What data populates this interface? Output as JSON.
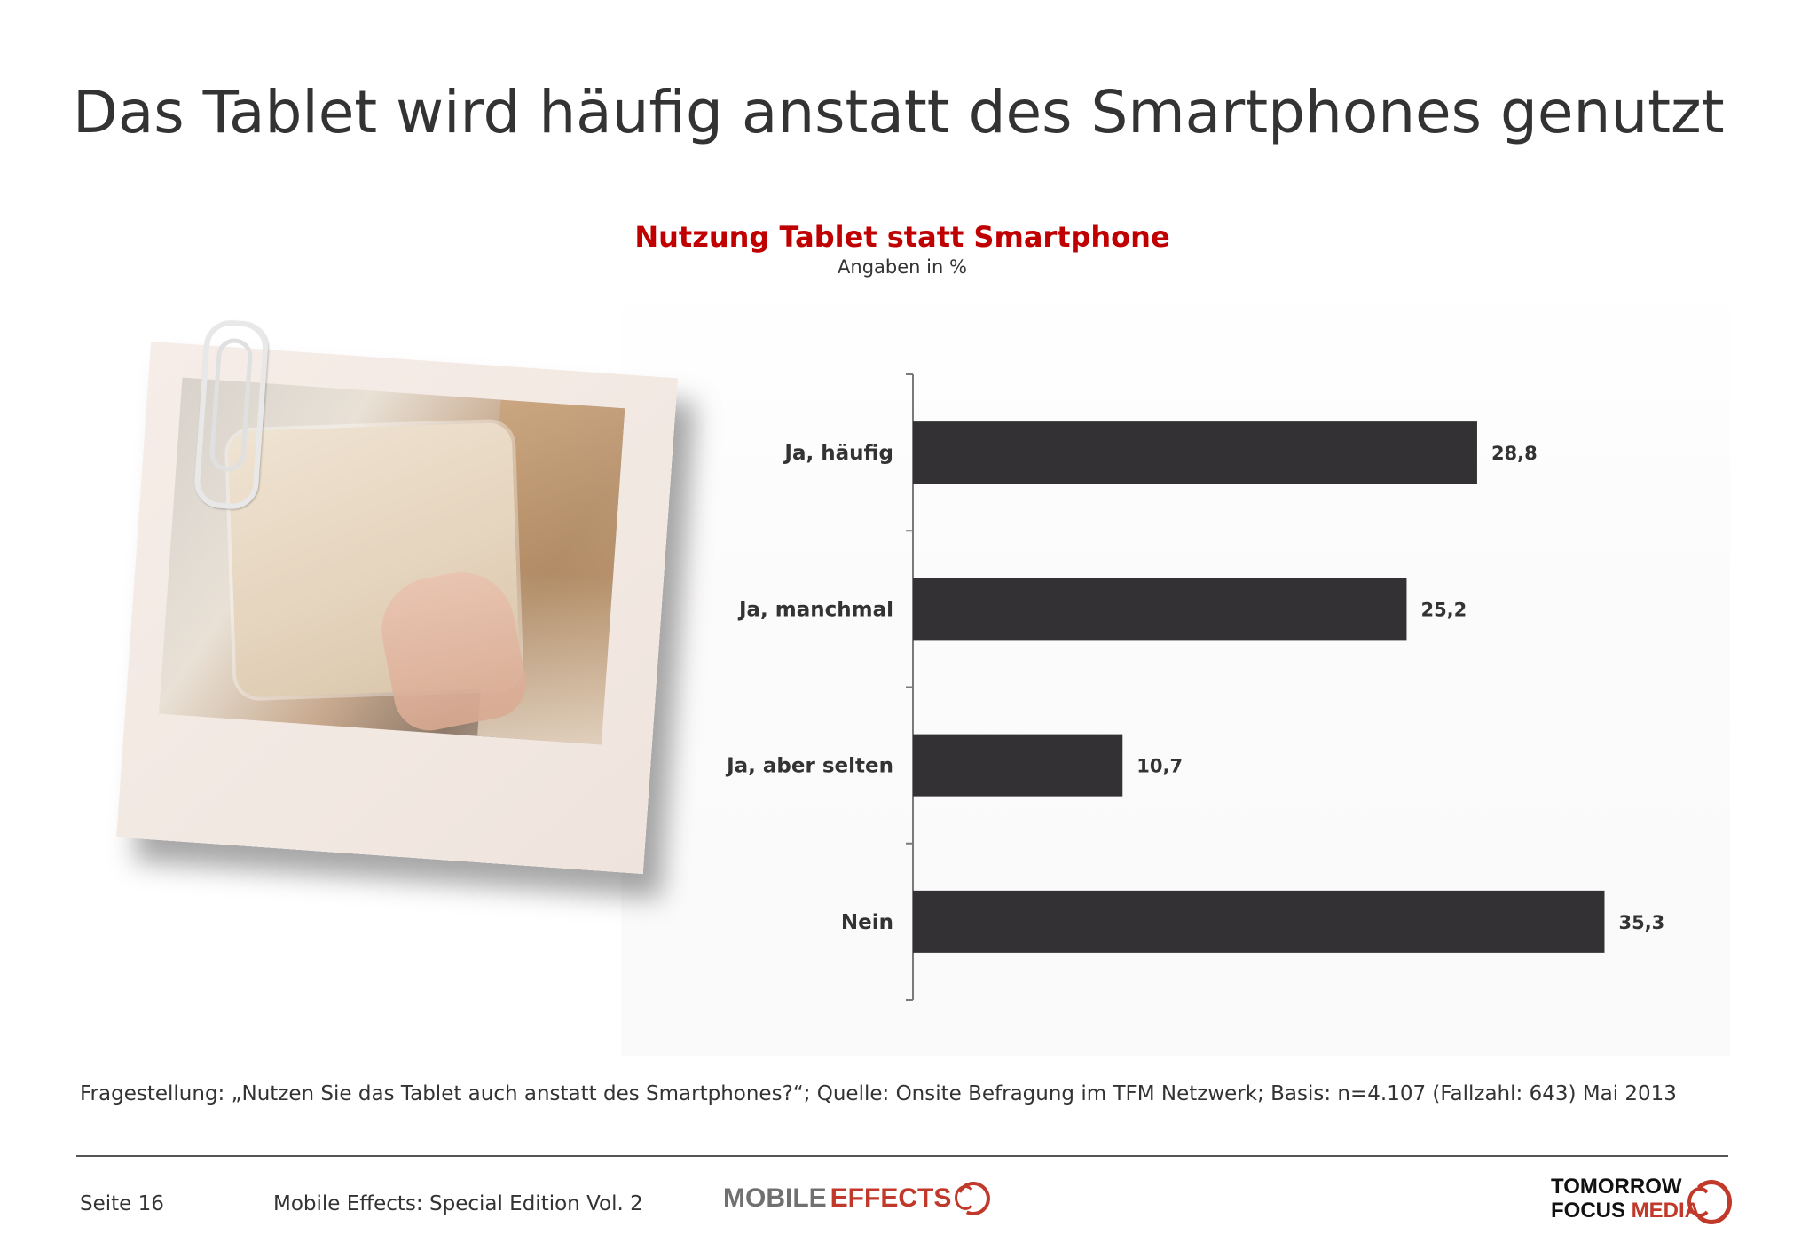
{
  "page": {
    "title": "Das Tablet wird häufig anstatt des Smartphones genutzt"
  },
  "chart_data": {
    "type": "bar",
    "orientation": "horizontal",
    "title": "Nutzung Tablet statt Smartphone",
    "subtitle": "Angaben in %",
    "categories": [
      "Ja, häufig",
      "Ja, manchmal",
      "Ja, aber selten",
      "Nein"
    ],
    "values": [
      28.8,
      25.2,
      10.7,
      35.3
    ],
    "value_labels": [
      "28,8",
      "25,2",
      "10,7",
      "35,3"
    ],
    "xlim": [
      0,
      40
    ],
    "bar_color": "#333133",
    "grid": false,
    "legend": "none"
  },
  "colors": {
    "title_red": "#c00000",
    "bar": "#333133",
    "text": "#333333"
  },
  "footnote": "Fragestellung: „Nutzen Sie das Tablet auch anstatt des Smartphones?“; Quelle: Onsite Befragung im TFM Netzwerk; Basis: n=4.107 (Fallzahl: 643) Mai 2013",
  "footer": {
    "page_label": "Seite 16",
    "edition": "Mobile Effects: Special Edition Vol. 2",
    "logo_mobile": "MOBILE",
    "logo_effects": "EFFECTS",
    "logo_tomorrow": "TOMORROW",
    "logo_focus": "FOCUS",
    "logo_media": "MEDIA"
  },
  "photo": {
    "icon": "tablet-photo-icon"
  }
}
